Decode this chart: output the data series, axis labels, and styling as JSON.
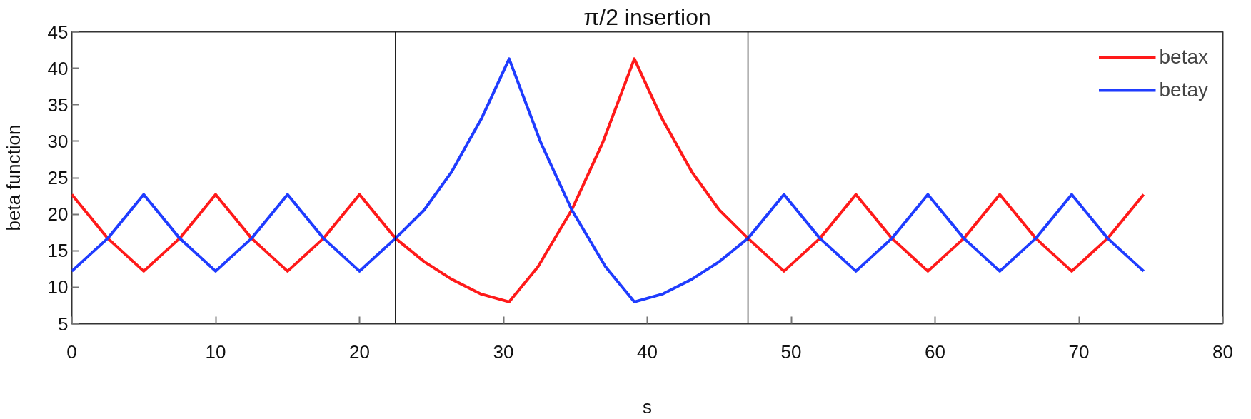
{
  "chart_data": {
    "type": "line",
    "xlabel": "s",
    "ylabel": "beta function",
    "xlim": [
      0,
      80
    ],
    "xticks": [
      0,
      10,
      20,
      30,
      40,
      50,
      60,
      70,
      80
    ],
    "ylim": [
      5,
      45
    ],
    "yticks": [
      5,
      10,
      15,
      20,
      25,
      30,
      35,
      40,
      45
    ],
    "grid": false,
    "legend": "top right",
    "marker": "none",
    "line_style": "solid",
    "series": [
      {
        "name": "betax",
        "color": "#ff1a1a",
        "x": [
          0,
          2.5,
          5,
          7.5,
          10,
          12.5,
          15,
          17.5,
          20,
          22.5,
          24.5,
          26.4,
          28.4,
          30.4,
          32.4,
          34.75,
          36.9,
          39.1,
          41.0,
          43.1,
          45.0,
          47.0,
          49.5,
          52,
          54.5,
          57,
          59.5,
          62,
          64.5,
          67,
          69.5,
          72,
          74.5
        ],
        "values": [
          22.7,
          16.7,
          12.2,
          16.7,
          22.7,
          16.7,
          12.2,
          16.7,
          22.7,
          16.7,
          13.5,
          11.1,
          9.1,
          8,
          12.8,
          20.6,
          29.8,
          41.3,
          33.2,
          25.8,
          20.6,
          16.7,
          12.2,
          16.7,
          22.7,
          16.7,
          12.2,
          16.7,
          22.7,
          16.7,
          12.2,
          16.7,
          22.7
        ]
      },
      {
        "name": "betay",
        "color": "#1f3cff",
        "x": [
          0,
          2.5,
          5,
          7.5,
          10,
          12.5,
          15,
          17.5,
          20,
          22.5,
          24.5,
          26.4,
          28.5,
          30.4,
          32.6,
          34.75,
          37.1,
          39.1,
          41.1,
          43.1,
          45.0,
          47.0,
          49.5,
          52,
          54.5,
          57,
          59.5,
          62,
          64.5,
          67,
          69.5,
          72,
          74.5
        ],
        "values": [
          12.2,
          16.7,
          22.7,
          16.7,
          12.2,
          16.7,
          22.7,
          16.7,
          12.2,
          16.7,
          20.6,
          25.8,
          33.2,
          41.3,
          29.8,
          20.6,
          12.8,
          8,
          9.1,
          11.1,
          13.5,
          16.7,
          22.7,
          16.7,
          12.2,
          16.7,
          22.7,
          16.7,
          12.2,
          16.7,
          22.7,
          16.7,
          12.2
        ]
      }
    ],
    "ref_lines": [
      {
        "axis": "x",
        "value": 22.5,
        "color": "#000000"
      },
      {
        "axis": "x",
        "value": 47.0,
        "color": "#000000"
      }
    ],
    "annotations": [
      "π/2 insertion"
    ]
  }
}
